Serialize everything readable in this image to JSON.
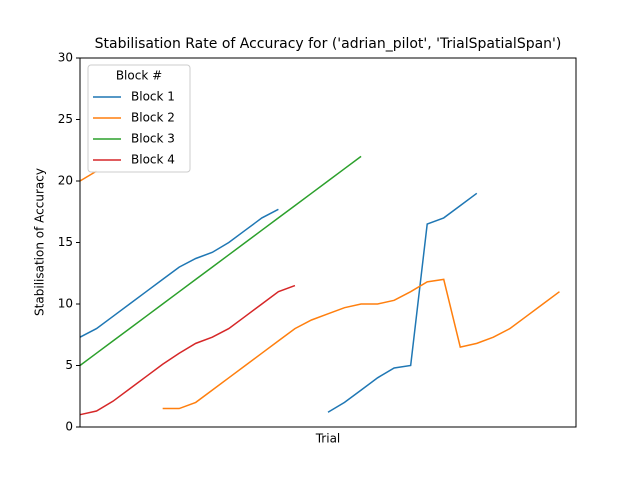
{
  "chart_data": {
    "type": "line",
    "title": "Stabilisation Rate of Accuracy for ('adrian_pilot', 'TrialSpatialSpan')",
    "x_label": "Trial",
    "y_label": "Stabilisation of Accuracy",
    "x": [
      0,
      1,
      2,
      3,
      4,
      5,
      6,
      7,
      8,
      9,
      10,
      11,
      12,
      13,
      14,
      15,
      16,
      17,
      18,
      19,
      20,
      21,
      22,
      23,
      24,
      25,
      26,
      27,
      28,
      29,
      30
    ],
    "xlim": [
      0,
      30
    ],
    "ylim": [
      0,
      30
    ],
    "yticks": [
      0,
      5,
      10,
      15,
      20,
      25,
      30
    ],
    "legend_title": "Block #",
    "legend": "upper left",
    "series": [
      {
        "name": "Block 1",
        "color": "#1f77b4",
        "values": [
          7.3,
          8.0,
          9.0,
          10,
          11,
          12,
          13,
          13.7,
          14.2,
          15,
          16,
          17,
          17.7,
          null,
          null,
          1.2,
          2.0,
          3.0,
          4.0,
          4.8,
          5.0,
          16.5,
          17.0,
          18.0,
          19.0,
          null,
          null,
          null,
          null,
          null,
          null
        ]
      },
      {
        "name": "Block 2",
        "color": "#ff7f0e",
        "values": [
          20,
          20.8,
          null,
          null,
          null,
          1.5,
          1.5,
          2.0,
          3.0,
          4.0,
          5.0,
          6.0,
          7.0,
          8.0,
          8.7,
          9.2,
          9.7,
          10,
          10,
          10.3,
          11,
          11.8,
          12.0,
          6.5,
          6.8,
          7.3,
          8.0,
          9.0,
          10.0,
          11.0,
          null
        ]
      },
      {
        "name": "Block 3",
        "color": "#2ca02c",
        "values": [
          5,
          6,
          7,
          8,
          9,
          10,
          11,
          12,
          13,
          14,
          15,
          16,
          17,
          18,
          19,
          20,
          21,
          22,
          null,
          null,
          null,
          null,
          null,
          null,
          null,
          null,
          null,
          null,
          null,
          null,
          null
        ]
      },
      {
        "name": "Block 4",
        "color": "#d62728",
        "values": [
          1.0,
          1.3,
          2.1,
          3.1,
          4.1,
          5.1,
          6.0,
          6.8,
          7.3,
          8.0,
          9.0,
          10.0,
          11.0,
          11.5,
          null,
          null,
          null,
          null,
          null,
          null,
          null,
          null,
          null,
          null,
          null,
          null,
          null,
          null,
          null,
          null,
          null
        ]
      }
    ]
  }
}
